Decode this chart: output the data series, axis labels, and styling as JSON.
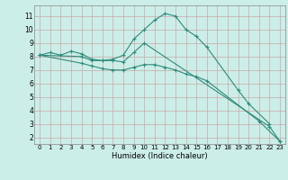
{
  "title": "",
  "xlabel": "Humidex (Indice chaleur)",
  "background_color": "#cceee8",
  "grid_color": "#c8a8a8",
  "line_color": "#2e8b7a",
  "xlim": [
    -0.5,
    23.5
  ],
  "ylim": [
    1.5,
    11.8
  ],
  "series": [
    {
      "x": [
        0,
        1,
        2,
        3,
        4,
        5,
        6,
        7,
        8,
        9,
        10,
        11,
        12,
        13,
        14,
        15,
        16,
        19,
        20,
        22
      ],
      "y": [
        8.1,
        8.3,
        8.1,
        8.4,
        8.2,
        7.8,
        7.7,
        7.8,
        8.1,
        9.3,
        10.0,
        10.7,
        11.2,
        11.0,
        10.0,
        9.5,
        8.7,
        5.5,
        4.5,
        3.0
      ]
    },
    {
      "x": [
        0,
        4,
        5,
        6,
        7,
        8,
        9,
        10,
        22,
        23
      ],
      "y": [
        8.1,
        8.0,
        7.7,
        7.7,
        7.7,
        7.6,
        8.3,
        9.0,
        2.8,
        1.7
      ]
    },
    {
      "x": [
        0,
        4,
        5,
        6,
        7,
        8,
        9,
        10,
        11,
        12,
        13,
        14,
        15,
        16,
        21,
        23
      ],
      "y": [
        8.1,
        7.5,
        7.3,
        7.1,
        7.0,
        7.0,
        7.2,
        7.4,
        7.4,
        7.2,
        7.0,
        6.7,
        6.5,
        6.2,
        3.2,
        1.7
      ]
    }
  ],
  "xticks": [
    0,
    1,
    2,
    3,
    4,
    5,
    6,
    7,
    8,
    9,
    10,
    11,
    12,
    13,
    14,
    15,
    16,
    17,
    18,
    19,
    20,
    21,
    22,
    23
  ],
  "yticks": [
    2,
    3,
    4,
    5,
    6,
    7,
    8,
    9,
    10,
    11
  ]
}
